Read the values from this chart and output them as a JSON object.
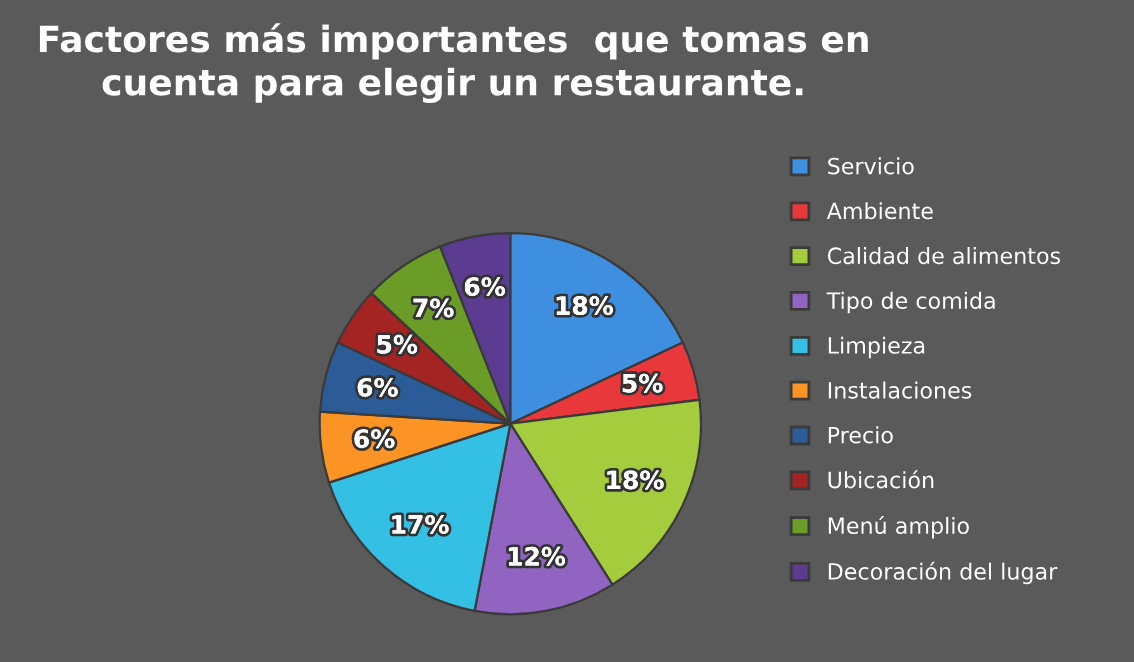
{
  "chart_data": {
    "type": "pie",
    "title": "Factores más importantes  que tomas en\ncuenta para elegir un restaurante.",
    "categories": [
      "Servicio",
      "Ambiente",
      "Calidad de alimentos",
      "Tipo de comida",
      "Limpieza",
      "Instalaciones",
      "Precio",
      "Ubicación",
      "Menú amplio",
      "Decoración del lugar"
    ],
    "values": [
      18,
      5,
      18,
      12,
      17,
      6,
      6,
      5,
      7,
      6
    ],
    "value_labels": [
      "18%",
      "5%",
      "18%",
      "12%",
      "17%",
      "6%",
      "6%",
      "5%",
      "7%",
      "6%"
    ],
    "colors": [
      "#3f8fe0",
      "#e8383c",
      "#a4cc3c",
      "#9064c0",
      "#34c0e4",
      "#fb9424",
      "#2c5c98",
      "#a42424",
      "#6c9c28",
      "#5c3c90"
    ],
    "legend": "right"
  }
}
